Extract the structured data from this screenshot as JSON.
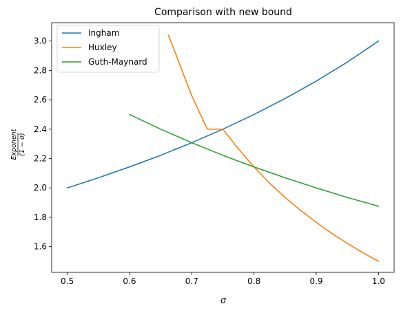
{
  "chart_data": {
    "type": "line",
    "title": "Comparison with new bound",
    "xlabel": "σ",
    "ylabel_numerator": "Exponent",
    "ylabel_denominator": "(1 − σ)",
    "xlim": [
      0.475,
      1.025
    ],
    "ylim": [
      1.425,
      3.125
    ],
    "xticks": [
      0.5,
      0.6,
      0.7,
      0.8,
      0.9,
      1.0
    ],
    "xtick_labels": [
      "0.5",
      "0.6",
      "0.7",
      "0.8",
      "0.9",
      "1.0"
    ],
    "yticks": [
      1.6,
      1.8,
      2.0,
      2.2,
      2.4,
      2.6,
      2.8,
      3.0
    ],
    "ytick_labels": [
      "1.6",
      "1.8",
      "2.0",
      "2.2",
      "2.4",
      "2.6",
      "2.8",
      "3.0"
    ],
    "grid": false,
    "legend_position": "top-left",
    "series": [
      {
        "name": "Ingham",
        "color": "#1f77b4",
        "x": [
          0.5,
          0.55,
          0.6,
          0.65,
          0.7,
          0.75,
          0.8,
          0.85,
          0.9,
          0.95,
          1.0
        ],
        "y": [
          2.0,
          2.069,
          2.143,
          2.222,
          2.308,
          2.4,
          2.5,
          2.609,
          2.727,
          2.857,
          3.0
        ]
      },
      {
        "name": "Huxley",
        "color": "#ff7f0e",
        "x": [
          0.6625,
          0.675,
          0.7,
          0.725,
          0.75,
          0.775,
          0.8,
          0.825,
          0.85,
          0.875,
          0.9,
          0.925,
          0.95,
          0.975,
          1.0
        ],
        "y": [
          3.04,
          2.904,
          2.627,
          2.4,
          2.4,
          2.265,
          2.143,
          2.032,
          1.935,
          1.846,
          1.765,
          1.69,
          1.622,
          1.558,
          1.5
        ]
      },
      {
        "name": "Guth-Maynard",
        "color": "#2ca02c",
        "x": [
          0.6,
          0.65,
          0.7,
          0.75,
          0.8,
          0.85,
          0.9,
          0.95,
          1.0
        ],
        "y": [
          2.5,
          2.4,
          2.308,
          2.222,
          2.143,
          2.069,
          2.0,
          1.935,
          1.875
        ]
      }
    ]
  }
}
